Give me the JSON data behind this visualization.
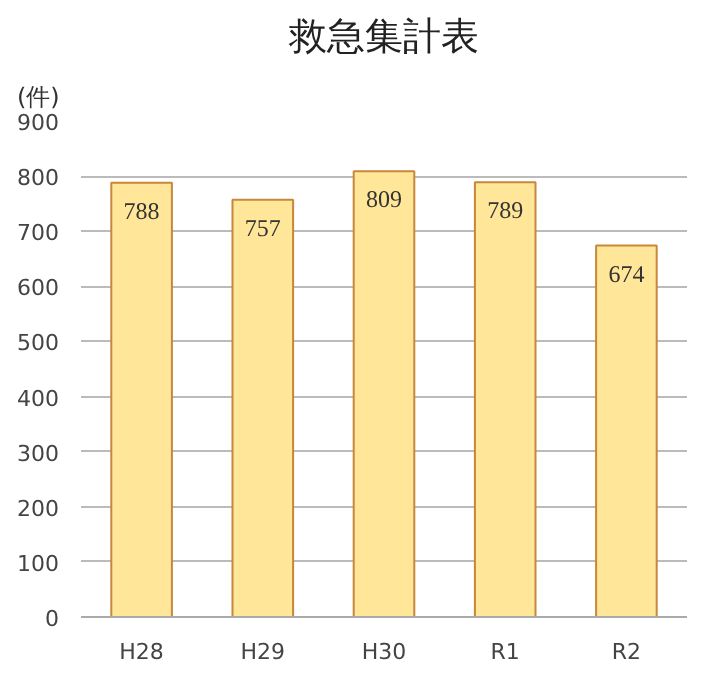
{
  "chart_data": {
    "type": "bar",
    "title": "救急集計表",
    "ylabel": "(件)",
    "categories": [
      "H28",
      "H29",
      "H30",
      "R1",
      "R2"
    ],
    "values": [
      788,
      757,
      809,
      789,
      674
    ],
    "color": "#ffe699",
    "ylim": [
      0,
      900
    ],
    "yticks": [
      0,
      100,
      200,
      300,
      400,
      500,
      600,
      700,
      800,
      900
    ],
    "grid": "y",
    "data_labels": true
  }
}
